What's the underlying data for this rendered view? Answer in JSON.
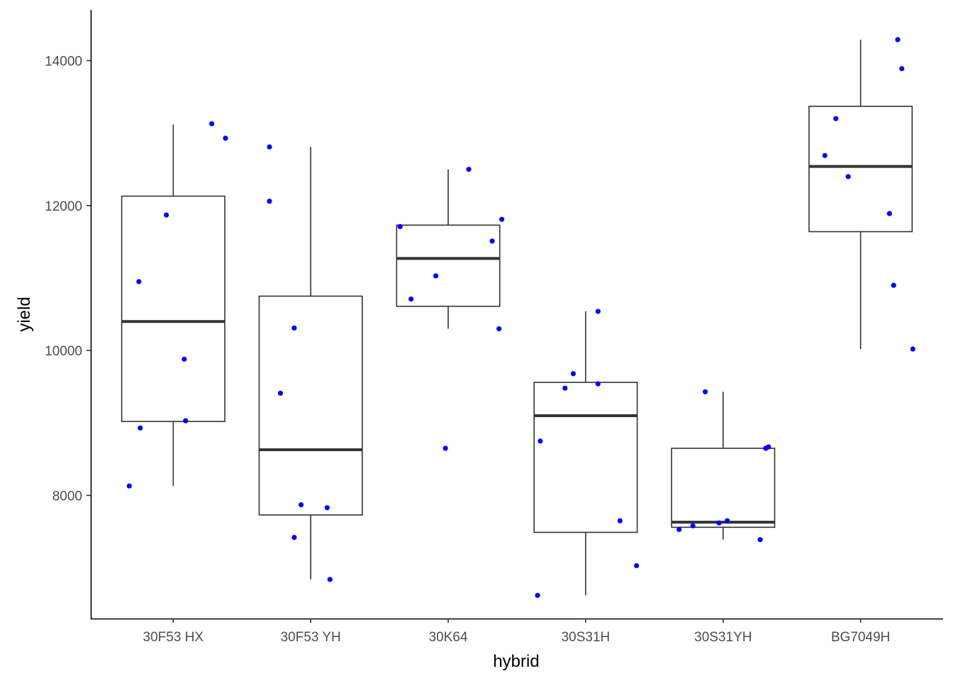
{
  "chart_data": {
    "type": "boxplot",
    "title": "",
    "xlabel": "hybrid",
    "ylabel": "yield",
    "ylim": [
      6300,
      14700
    ],
    "yticks": [
      8000,
      10000,
      12000,
      14000
    ],
    "grid": false,
    "legend": "none",
    "colors": {
      "box": "#333333",
      "points": "#0000ff",
      "background": "#ffffff"
    },
    "categories": [
      "30F53 HX",
      "30F53 YH",
      "30K64",
      "30S31H",
      "30S31YH",
      "BG7049H"
    ],
    "boxes": [
      {
        "category": "30F53 HX",
        "whisker_low": 8130,
        "q1": 9020,
        "median": 10400,
        "q3": 12130,
        "whisker_high": 13120
      },
      {
        "category": "30F53 YH",
        "whisker_low": 6840,
        "q1": 7730,
        "median": 8630,
        "q3": 10750,
        "whisker_high": 12810
      },
      {
        "category": "30K64",
        "whisker_low": 10300,
        "q1": 10610,
        "median": 11270,
        "q3": 11730,
        "whisker_high": 12500
      },
      {
        "category": "30S31H",
        "whisker_low": 6620,
        "q1": 7490,
        "median": 9100,
        "q3": 9560,
        "whisker_high": 10540
      },
      {
        "category": "30S31YH",
        "whisker_low": 7390,
        "q1": 7560,
        "median": 7630,
        "q3": 8650,
        "whisker_high": 9430
      },
      {
        "category": "BG7049H",
        "whisker_low": 10020,
        "q1": 11640,
        "median": 12540,
        "q3": 13370,
        "whisker_high": 14290
      }
    ],
    "points": [
      {
        "category": "30F53 HX",
        "jitter": -0.32,
        "value": 8130
      },
      {
        "category": "30F53 HX",
        "jitter": -0.25,
        "value": 10950
      },
      {
        "category": "30F53 HX",
        "jitter": -0.24,
        "value": 8930
      },
      {
        "category": "30F53 HX",
        "jitter": -0.05,
        "value": 11870
      },
      {
        "category": "30F53 HX",
        "jitter": 0.08,
        "value": 9880
      },
      {
        "category": "30F53 HX",
        "jitter": 0.09,
        "value": 9030
      },
      {
        "category": "30F53 HX",
        "jitter": 0.28,
        "value": 13130
      },
      {
        "category": "30F53 HX",
        "jitter": 0.38,
        "value": 12930
      },
      {
        "category": "30F53 YH",
        "jitter": -0.3,
        "value": 12810
      },
      {
        "category": "30F53 YH",
        "jitter": -0.3,
        "value": 12060
      },
      {
        "category": "30F53 YH",
        "jitter": -0.22,
        "value": 9410
      },
      {
        "category": "30F53 YH",
        "jitter": -0.12,
        "value": 10310
      },
      {
        "category": "30F53 YH",
        "jitter": -0.12,
        "value": 7420
      },
      {
        "category": "30F53 YH",
        "jitter": -0.07,
        "value": 7870
      },
      {
        "category": "30F53 YH",
        "jitter": 0.12,
        "value": 7830
      },
      {
        "category": "30F53 YH",
        "jitter": 0.14,
        "value": 6840
      },
      {
        "category": "30K64",
        "jitter": -0.35,
        "value": 11710
      },
      {
        "category": "30K64",
        "jitter": -0.27,
        "value": 10710
      },
      {
        "category": "30K64",
        "jitter": -0.09,
        "value": 11030
      },
      {
        "category": "30K64",
        "jitter": -0.02,
        "value": 8650
      },
      {
        "category": "30K64",
        "jitter": 0.15,
        "value": 12500
      },
      {
        "category": "30K64",
        "jitter": 0.32,
        "value": 11510
      },
      {
        "category": "30K64",
        "jitter": 0.37,
        "value": 10300
      },
      {
        "category": "30K64",
        "jitter": 0.39,
        "value": 11810
      },
      {
        "category": "30S31H",
        "jitter": -0.35,
        "value": 6620
      },
      {
        "category": "30S31H",
        "jitter": -0.33,
        "value": 8750
      },
      {
        "category": "30S31H",
        "jitter": -0.15,
        "value": 9480
      },
      {
        "category": "30S31H",
        "jitter": -0.09,
        "value": 9680
      },
      {
        "category": "30S31H",
        "jitter": 0.09,
        "value": 10540
      },
      {
        "category": "30S31H",
        "jitter": 0.09,
        "value": 9540
      },
      {
        "category": "30S31H",
        "jitter": 0.25,
        "value": 7650
      },
      {
        "category": "30S31H",
        "jitter": 0.37,
        "value": 7030
      },
      {
        "category": "30S31YH",
        "jitter": -0.32,
        "value": 7530
      },
      {
        "category": "30S31YH",
        "jitter": -0.22,
        "value": 7580
      },
      {
        "category": "30S31YH",
        "jitter": -0.13,
        "value": 9430
      },
      {
        "category": "30S31YH",
        "jitter": -0.03,
        "value": 7620
      },
      {
        "category": "30S31YH",
        "jitter": 0.03,
        "value": 7650
      },
      {
        "category": "30S31YH",
        "jitter": 0.27,
        "value": 7390
      },
      {
        "category": "30S31YH",
        "jitter": 0.31,
        "value": 8650
      },
      {
        "category": "30S31YH",
        "jitter": 0.33,
        "value": 8670
      },
      {
        "category": "BG7049H",
        "jitter": -0.26,
        "value": 12690
      },
      {
        "category": "BG7049H",
        "jitter": -0.18,
        "value": 13200
      },
      {
        "category": "BG7049H",
        "jitter": -0.09,
        "value": 12400
      },
      {
        "category": "BG7049H",
        "jitter": 0.21,
        "value": 11890
      },
      {
        "category": "BG7049H",
        "jitter": 0.24,
        "value": 10900
      },
      {
        "category": "BG7049H",
        "jitter": 0.27,
        "value": 14290
      },
      {
        "category": "BG7049H",
        "jitter": 0.3,
        "value": 13890
      },
      {
        "category": "BG7049H",
        "jitter": 0.38,
        "value": 10020
      }
    ]
  }
}
